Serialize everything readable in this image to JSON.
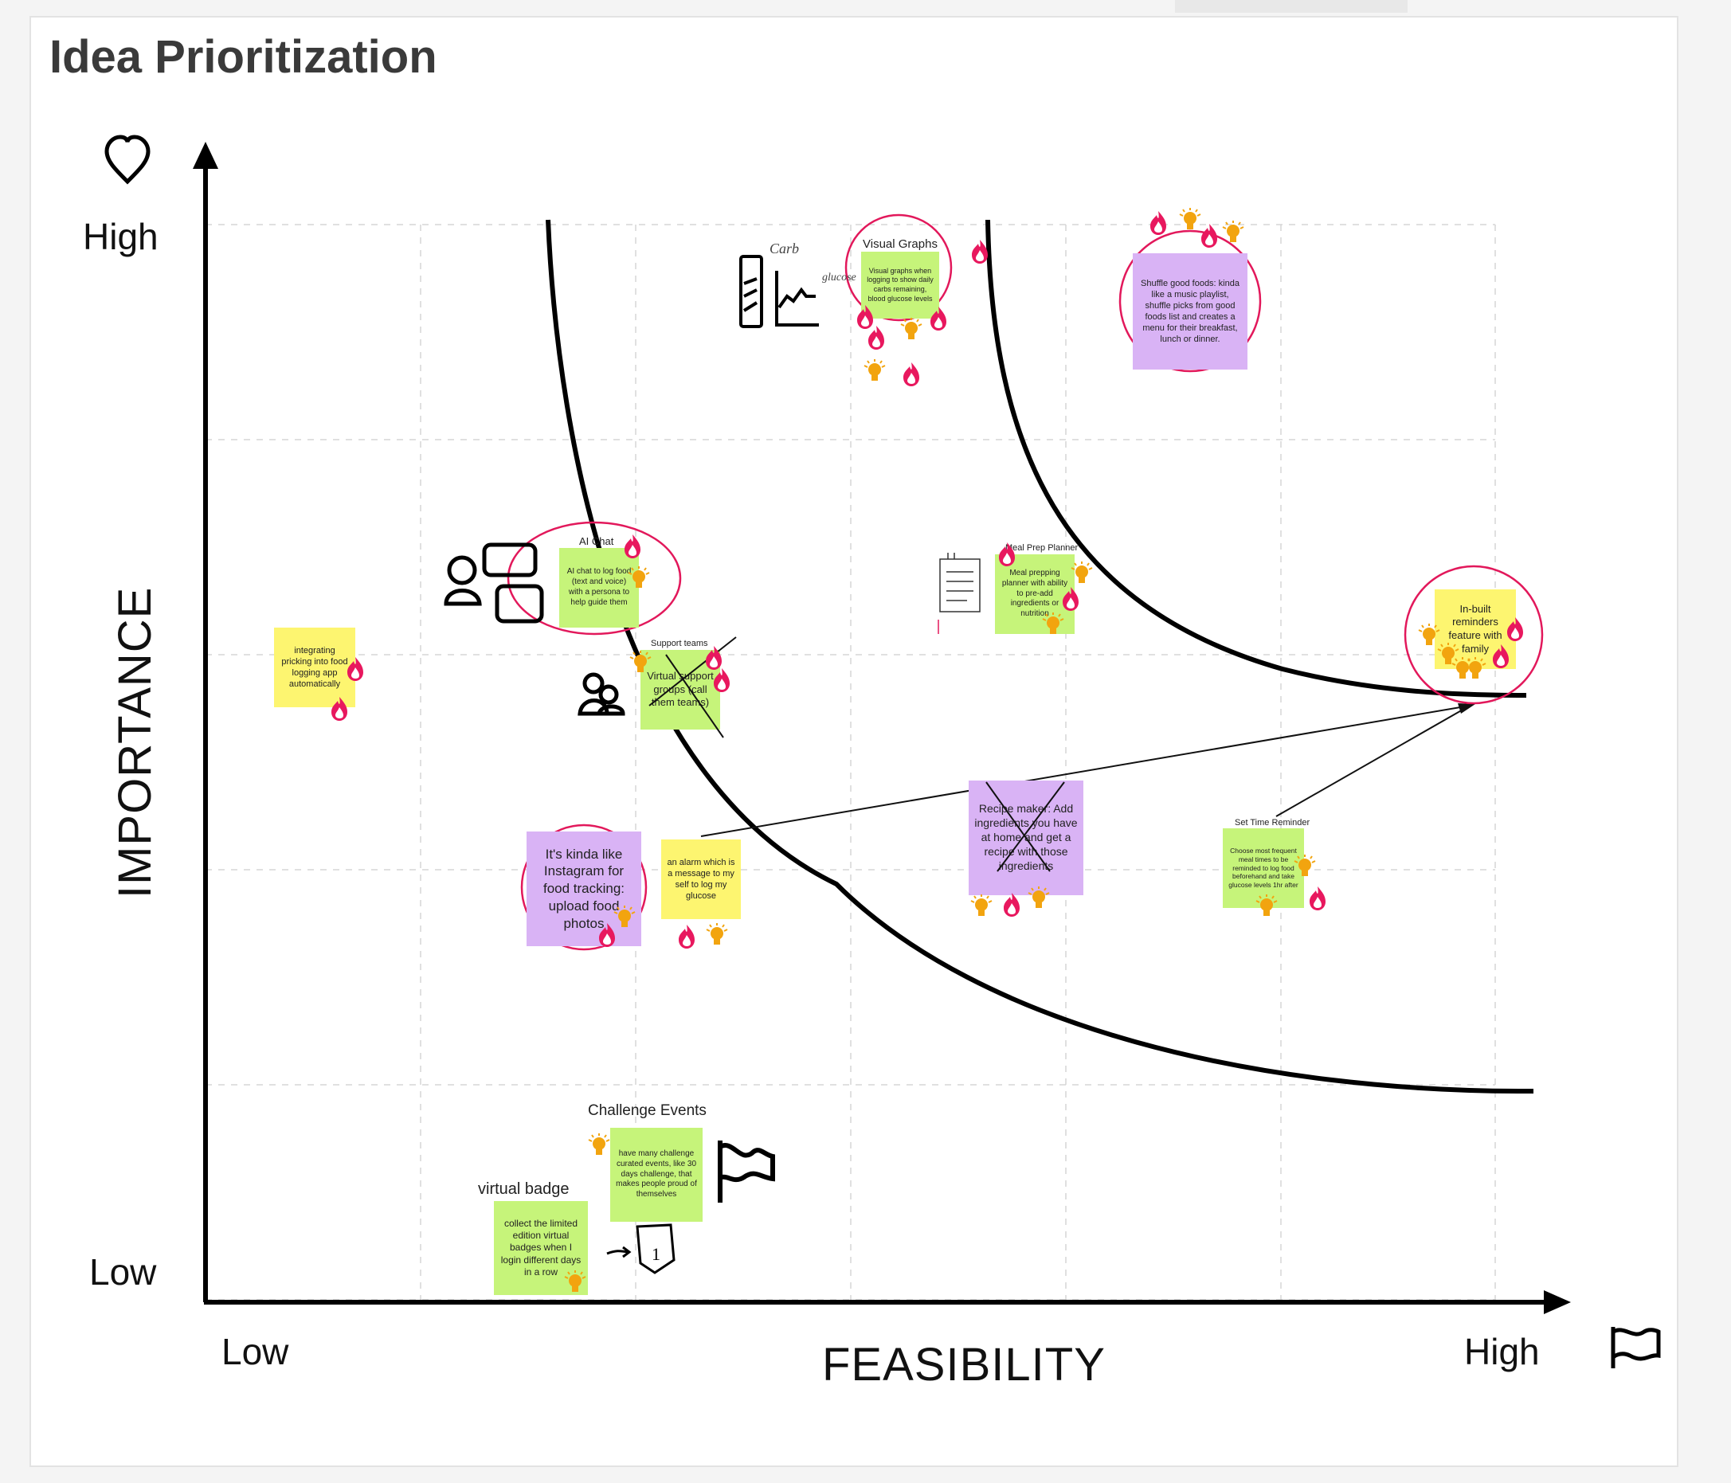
{
  "board": {
    "title": "Idea Prioritization",
    "y_axis_label": "IMPORTANCE",
    "x_axis_label": "FEASIBILITY",
    "y_high": "High",
    "y_low": "Low",
    "x_low": "Low",
    "x_high": "High",
    "icons": {
      "y_axis": "heart-icon",
      "x_axis": "flag-icon"
    }
  },
  "colors": {
    "green_note": "#c6f47a",
    "yellow_note": "#fdf570",
    "purple_note": "#d9b3f5",
    "circle": "#e2185b",
    "fire": "#e8185e",
    "bulb": "#f2a40f"
  },
  "notes": {
    "visual_graphs": {
      "title": "Visual Graphs",
      "text": "Visual graphs when logging to show daily carbs remaining, blood glucose levels"
    },
    "shuffle": {
      "text": "Shuffle good foods: kinda like a music playlist, shuffle picks from good foods list and creates a menu for their breakfast, lunch or dinner."
    },
    "ai_chat": {
      "title": "AI Chat",
      "text": "AI chat to log food (text and voice) with a persona to help guide them"
    },
    "meal_prep": {
      "title": "Meal Prep Planner",
      "text": "Meal prepping planner with ability to pre-add ingredients or nutrition"
    },
    "integrating": {
      "text": "integrating pricking into food logging app automatically"
    },
    "support_teams": {
      "title": "Support teams",
      "text": "Virtual support groups (call them teams)"
    },
    "reminders": {
      "text": "In-built reminders feature with family"
    },
    "recipe_maker": {
      "text": "Recipe maker: Add ingredients you have at home and get a recipe with those ingredients"
    },
    "instagram": {
      "text": "It's kinda like Instagram for food tracking: upload food photos"
    },
    "alarm": {
      "text": "an alarm which is a message to my self to log my glucose"
    },
    "set_time": {
      "title": "Set Time Reminder",
      "text": "Choose most frequent meal times to be reminded to log food beforehand and take glucose levels 1hr after"
    },
    "challenge": {
      "title": "Challenge Events",
      "text": "have many challenge curated events, like 30 days challenge, that makes people proud of themselves"
    },
    "badge": {
      "title": "virtual badge",
      "text": "collect the limited edition virtual badges when I login different days in a row"
    }
  },
  "sketches": {
    "carb_word": "Carb",
    "glucose_word": "glucose",
    "badge_number": "1"
  }
}
